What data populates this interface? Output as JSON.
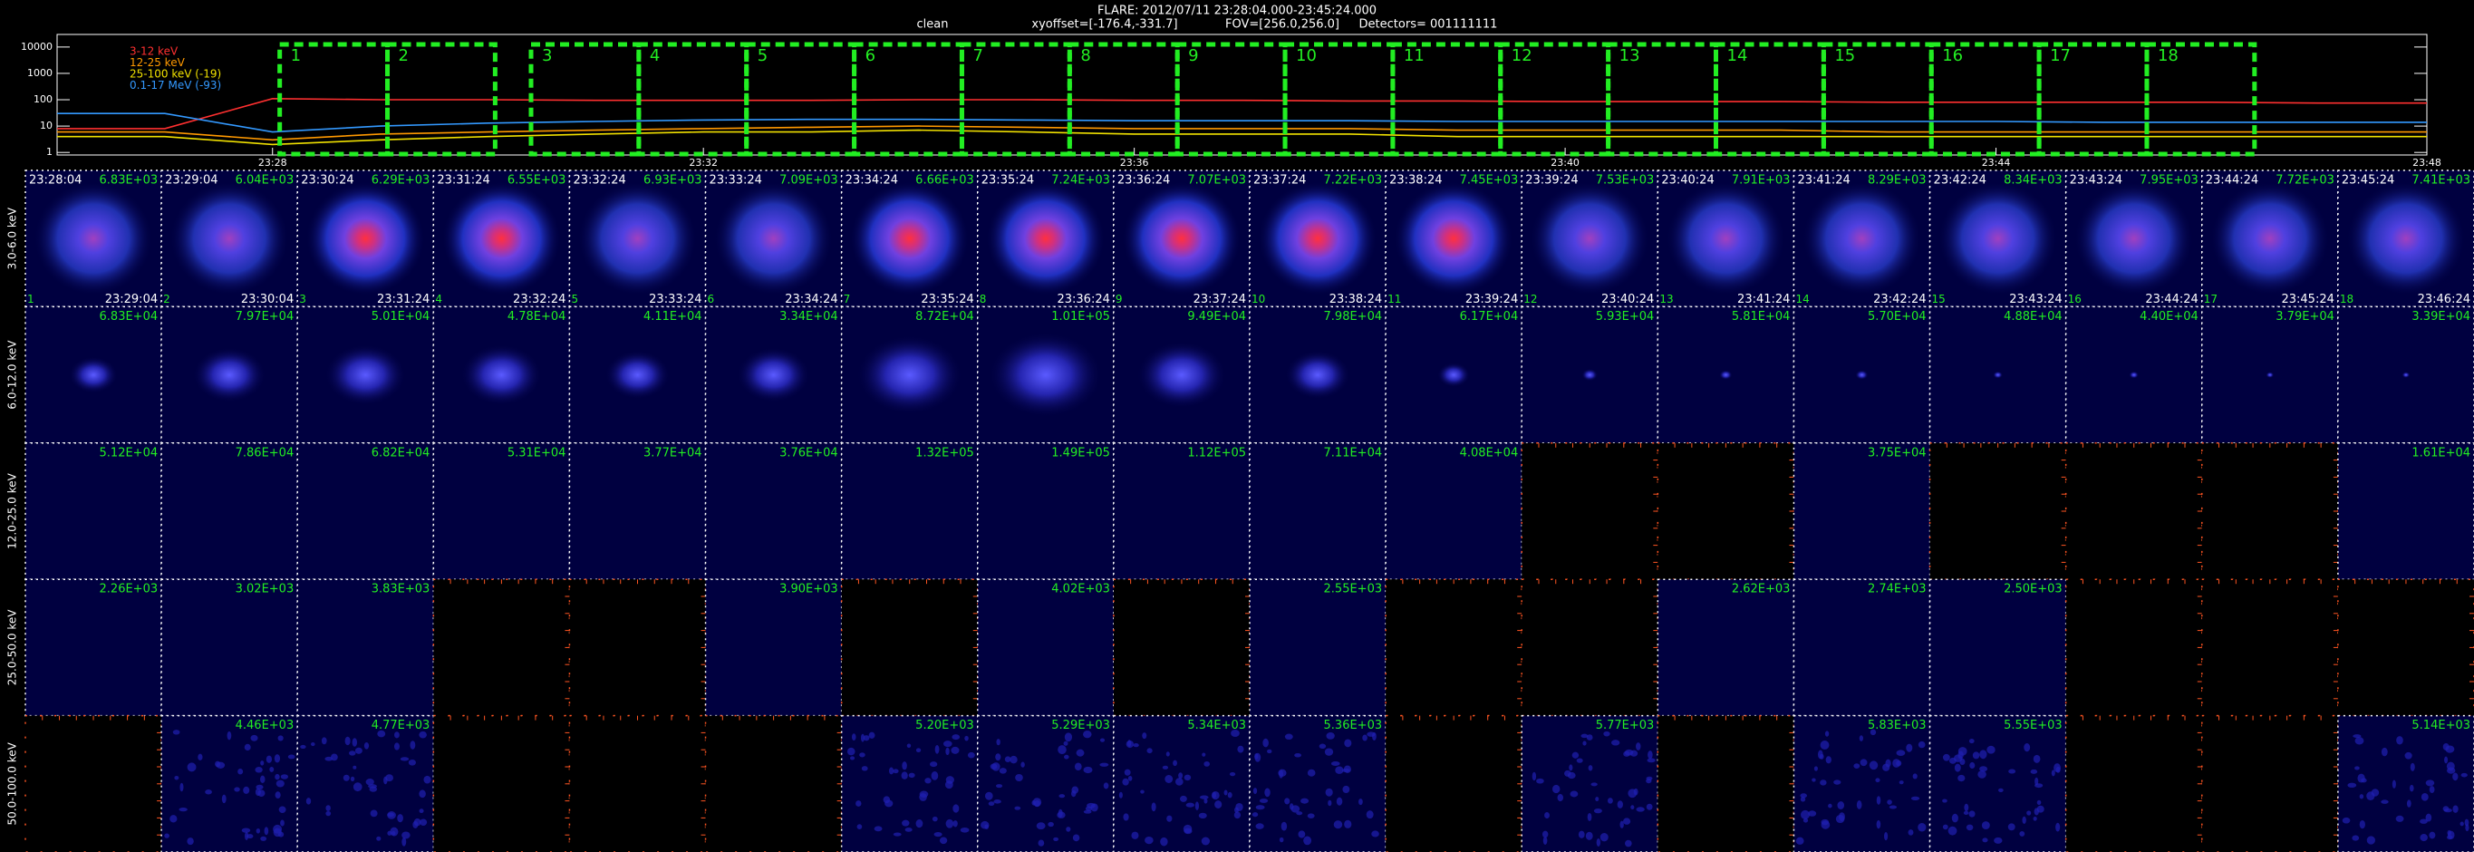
{
  "header": {
    "title": "FLARE: 2012/07/11 23:28:04.000-23:45:24.000",
    "method": "clean",
    "xyoffset": "xyoffset=[-176.4,-331.7]",
    "fov": "FOV=[256.0,256.0]",
    "detectors": "Detectors= 001111111"
  },
  "chart_data": {
    "type": "line",
    "log_y": true,
    "x": [
      1406,
      1407,
      1408,
      1409,
      1410,
      1411,
      1412,
      1413,
      1414,
      1415,
      1416,
      1417,
      1418,
      1419,
      1420,
      1421,
      1422,
      1423,
      1424,
      1425,
      1426,
      1427,
      1428
    ],
    "xlim": [
      1406,
      1428
    ],
    "xticks": [
      {
        "value": 1408,
        "label": "23:28"
      },
      {
        "value": 1412,
        "label": "23:32"
      },
      {
        "value": 1416,
        "label": "23:36"
      },
      {
        "value": 1420,
        "label": "23:40"
      },
      {
        "value": 1424,
        "label": "23:44"
      },
      {
        "value": 1428,
        "label": "23:48"
      }
    ],
    "ylim": [
      0.8,
      30000
    ],
    "yticks": [
      1,
      10,
      100,
      1000,
      10000
    ],
    "series": [
      {
        "name": "3-12 keV",
        "color": "#ff3030",
        "values": [
          8,
          8,
          110,
          100,
          100,
          95,
          95,
          95,
          100,
          100,
          95,
          95,
          90,
          90,
          85,
          85,
          85,
          80,
          80,
          80,
          80,
          75,
          75
        ]
      },
      {
        "name": "12-25 keV",
        "color": "#ff9900",
        "values": [
          6,
          6,
          3,
          5,
          6,
          7,
          8,
          9,
          10,
          9,
          8,
          8,
          8,
          7,
          7,
          7,
          7,
          6,
          6,
          6,
          6,
          6,
          6
        ]
      },
      {
        "name": "25-100 keV (-19)",
        "color": "#f0e000",
        "values": [
          4,
          4,
          2,
          3,
          4,
          5,
          6,
          6,
          7,
          6,
          5,
          5,
          5,
          4,
          4,
          4,
          4,
          4,
          4,
          4,
          4,
          4,
          4
        ]
      },
      {
        "name": "0.1-17 MeV (-93)",
        "color": "#3399ff",
        "values": [
          30,
          30,
          6,
          10,
          13,
          15,
          17,
          18,
          18,
          17,
          16,
          16,
          16,
          15,
          15,
          15,
          15,
          15,
          15,
          14,
          14,
          14,
          14
        ]
      }
    ]
  },
  "intervals": [
    {
      "number": "1",
      "start": "23:28:04",
      "end": "23:29:04"
    },
    {
      "number": "2",
      "start": "23:29:04",
      "end": "23:30:04"
    },
    {
      "number": "3",
      "start": "23:30:24",
      "end": "23:31:24"
    },
    {
      "number": "4",
      "start": "23:31:24",
      "end": "23:32:24"
    },
    {
      "number": "5",
      "start": "23:32:24",
      "end": "23:33:24"
    },
    {
      "number": "6",
      "start": "23:33:24",
      "end": "23:34:24"
    },
    {
      "number": "7",
      "start": "23:34:24",
      "end": "23:35:24"
    },
    {
      "number": "8",
      "start": "23:35:24",
      "end": "23:36:24"
    },
    {
      "number": "9",
      "start": "23:36:24",
      "end": "23:37:24"
    },
    {
      "number": "10",
      "start": "23:37:24",
      "end": "23:38:24"
    },
    {
      "number": "11",
      "start": "23:38:24",
      "end": "23:39:24"
    },
    {
      "number": "12",
      "start": "23:39:24",
      "end": "23:40:24"
    },
    {
      "number": "13",
      "start": "23:40:24",
      "end": "23:41:24"
    },
    {
      "number": "14",
      "start": "23:41:24",
      "end": "23:42:24"
    },
    {
      "number": "15",
      "start": "23:42:24",
      "end": "23:43:24"
    },
    {
      "number": "16",
      "start": "23:43:24",
      "end": "23:44:24"
    },
    {
      "number": "17",
      "start": "23:44:24",
      "end": "23:45:24"
    },
    {
      "number": "18",
      "start": "23:45:24",
      "end": "23:46:24"
    }
  ],
  "energy_bands": [
    "3.0-6.0 keV",
    "6.0-12.0 keV",
    "12.0-25.0 keV",
    "25.0-50.0 keV",
    "50.0-100.0 keV"
  ],
  "peak_values": [
    [
      "6.83E+03",
      "6.04E+03",
      "6.29E+03",
      "6.55E+03",
      "6.93E+03",
      "7.09E+03",
      "6.66E+03",
      "7.24E+03",
      "7.07E+03",
      "7.22E+03",
      "7.45E+03",
      "7.53E+03",
      "7.91E+03",
      "8.29E+03",
      "8.34E+03",
      "7.95E+03",
      "7.72E+03",
      "7.41E+03"
    ],
    [
      "6.83E+04",
      "7.97E+04",
      "5.01E+04",
      "4.78E+04",
      "4.11E+04",
      "3.34E+04",
      "8.72E+04",
      "1.01E+05",
      "9.49E+04",
      "7.98E+04",
      "6.17E+04",
      "5.93E+04",
      "5.81E+04",
      "5.70E+04",
      "4.88E+04",
      "4.40E+04",
      "3.79E+04",
      "3.39E+04"
    ],
    [
      "5.12E+04",
      "7.86E+04",
      "6.82E+04",
      "5.31E+04",
      "3.77E+04",
      "3.76E+04",
      "1.32E+05",
      "1.49E+05",
      "1.12E+05",
      "7.11E+04",
      "4.08E+04",
      null,
      null,
      "3.75E+04",
      null,
      null,
      null,
      "1.61E+04"
    ],
    [
      "2.26E+03",
      "3.02E+03",
      "3.83E+03",
      null,
      null,
      "3.90E+03",
      null,
      "4.02E+03",
      null,
      "2.55E+03",
      null,
      null,
      "2.62E+03",
      "2.74E+03",
      "2.50E+03",
      null,
      null,
      null
    ],
    [
      null,
      "4.46E+03",
      "4.77E+03",
      null,
      null,
      null,
      "5.20E+03",
      "5.29E+03",
      "5.34E+03",
      "5.36E+03",
      null,
      "5.77E+03",
      null,
      "5.83E+03",
      "5.55E+03",
      null,
      null,
      "5.14E+03"
    ]
  ]
}
